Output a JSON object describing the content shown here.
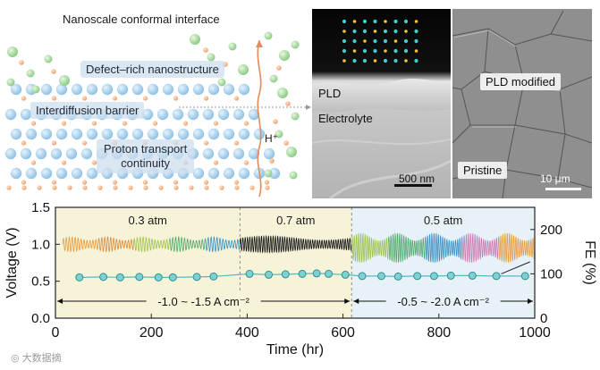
{
  "schematic": {
    "title": "Nanoscale conformal interface",
    "labels": {
      "defect": "Defect–rich nanostructure",
      "barrier": "Interdiffusion barrier",
      "proton_line1": "Proton transport",
      "proton_line2": "continuity",
      "hplus": "H⁺"
    }
  },
  "micrograph_left": {
    "pld": "PLD",
    "electrolyte": "Electrolyte",
    "scale": "500 nm"
  },
  "micrograph_right": {
    "modified": "PLD modified",
    "pristine": "Pristine",
    "scale": "10 μm"
  },
  "watermark": "大数据摘",
  "chart_data": {
    "type": "line",
    "xlabel": "Time (hr)",
    "ylabel_left": "Voltage (V)",
    "ylabel_right": "FE (%)",
    "xlim": [
      0,
      1000
    ],
    "xticks": [
      0,
      200,
      400,
      600,
      800,
      1000
    ],
    "ylim_left": [
      0.0,
      1.5
    ],
    "yticks_left": [
      "0.0",
      "0.5",
      "1.0",
      "1.5"
    ],
    "ylim_right": [
      0,
      250
    ],
    "yticks_right": [
      "0",
      "100",
      "200"
    ],
    "regions": [
      {
        "label": "0.3 atm",
        "start": 0,
        "end": 385,
        "color": "#f7f3d9"
      },
      {
        "label": "0.7 atm",
        "start": 385,
        "end": 618,
        "color": "#f7f3d9"
      },
      {
        "label": "0.5 atm",
        "start": 618,
        "end": 1000,
        "color": "#e6f1f8"
      }
    ],
    "current_ranges": [
      {
        "label": "-1.0 ~ -1.5 A cm⁻²",
        "start": 0,
        "end": 618
      },
      {
        "label": "-0.5 ~ -2.0 A cm⁻²",
        "start": 618,
        "end": 1000
      }
    ],
    "voltage_segments": [
      {
        "start": 15,
        "end": 385,
        "center": 1.0,
        "amplitude": 0.1,
        "cycles": 60
      },
      {
        "start": 385,
        "end": 618,
        "center": 1.0,
        "amplitude": 0.11,
        "cycles": 48
      },
      {
        "start": 618,
        "end": 1000,
        "center": 0.95,
        "amplitude": 0.2,
        "cycles": 85
      }
    ],
    "fe_series": {
      "name": "FE",
      "x": [
        50,
        100,
        135,
        175,
        215,
        245,
        295,
        330,
        405,
        445,
        480,
        515,
        545,
        570,
        605,
        640,
        680,
        715,
        755,
        790,
        825,
        870,
        920,
        980
      ],
      "y": [
        92,
        93,
        92,
        93,
        92,
        92,
        93,
        94,
        100,
        98,
        99,
        100,
        101,
        100,
        98,
        95,
        95,
        94,
        95,
        95,
        96,
        96,
        95,
        95
      ]
    }
  }
}
